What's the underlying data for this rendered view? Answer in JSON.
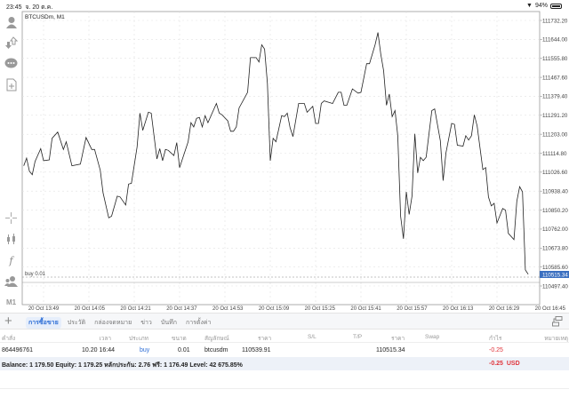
{
  "status_bar": {
    "time": "23:45",
    "date": "จ. 20 ต.ค.",
    "battery": "94%",
    "battery_level": 0.94
  },
  "chart": {
    "symbol_label": "BTCUSDm, M1",
    "order_line_label": "buy 0.01",
    "current_price": "110515.34",
    "current_price_color": "#3a6fc0"
  },
  "toolbar": {
    "timeframe": "M1",
    "icons": [
      "account-icon",
      "trade-arrows-icon",
      "chat-icon",
      "new-document-icon",
      "crosshair-icon",
      "candlestick-icon",
      "function-icon",
      "users-icon",
      "add-icon"
    ]
  },
  "chart_data": {
    "type": "line",
    "title": "BTCUSDm, M1",
    "ylim": [
      110497.4,
      111732.2
    ],
    "yticks": [
      "111732.20",
      "111644.00",
      "111555.80",
      "111467.60",
      "111379.40",
      "111291.20",
      "111203.00",
      "111114.80",
      "111026.60",
      "110938.40",
      "110850.20",
      "110762.00",
      "110673.80",
      "110585.60",
      "110497.40"
    ],
    "xticks": [
      "20 Oct 13:49",
      "20 Oct 14:05",
      "20 Oct 14:21",
      "20 Oct 14:37",
      "20 Oct 14:53",
      "20 Oct 15:09",
      "20 Oct 15:25",
      "20 Oct 15:41",
      "20 Oct 15:57",
      "20 Oct 16:13",
      "20 Oct 16:29",
      "20 Oct 16:45"
    ],
    "grid": true,
    "order_price": 110539.91,
    "points": [
      [
        "13:42",
        111056
      ],
      [
        "13:43",
        111092
      ],
      [
        "13:44",
        111031
      ],
      [
        "13:45",
        111015
      ],
      [
        "13:46",
        111076
      ],
      [
        "13:48",
        111136
      ],
      [
        "13:49",
        111080
      ],
      [
        "13:51",
        111084
      ],
      [
        "13:52",
        111184
      ],
      [
        "13:54",
        111213
      ],
      [
        "13:56",
        111132
      ],
      [
        "13:57",
        111168
      ],
      [
        "13:59",
        111056
      ],
      [
        "14:02",
        111064
      ],
      [
        "14:04",
        111188
      ],
      [
        "14:06",
        111132
      ],
      [
        "14:07",
        111132
      ],
      [
        "14:09",
        111035
      ],
      [
        "14:10",
        110931
      ],
      [
        "14:12",
        110814
      ],
      [
        "14:13",
        110822
      ],
      [
        "14:15",
        110915
      ],
      [
        "14:16",
        110911
      ],
      [
        "14:18",
        110874
      ],
      [
        "14:19",
        110971
      ],
      [
        "14:20",
        110975
      ],
      [
        "14:22",
        111144
      ],
      [
        "14:23",
        111301
      ],
      [
        "14:24",
        111221
      ],
      [
        "14:26",
        111305
      ],
      [
        "14:27",
        111301
      ],
      [
        "14:29",
        111088
      ],
      [
        "14:30",
        111136
      ],
      [
        "14:31",
        111080
      ],
      [
        "14:32",
        111132
      ],
      [
        "14:33",
        111128
      ],
      [
        "14:35",
        111104
      ],
      [
        "14:36",
        111164
      ],
      [
        "14:37",
        111048
      ],
      [
        "14:40",
        111168
      ],
      [
        "14:41",
        111257
      ],
      [
        "14:42",
        111237
      ],
      [
        "14:43",
        111277
      ],
      [
        "14:44",
        111281
      ],
      [
        "14:45",
        111237
      ],
      [
        "14:46",
        111289
      ],
      [
        "14:47",
        111257
      ],
      [
        "14:50",
        111346
      ],
      [
        "14:51",
        111301
      ],
      [
        "14:52",
        111293
      ],
      [
        "14:54",
        111265
      ],
      [
        "14:55",
        111217
      ],
      [
        "14:56",
        111217
      ],
      [
        "14:57",
        111237
      ],
      [
        "14:58",
        111325
      ],
      [
        "15:01",
        111398
      ],
      [
        "15:02",
        111559
      ],
      [
        "15:04",
        111559
      ],
      [
        "15:05",
        111539
      ],
      [
        "15:06",
        111619
      ],
      [
        "15:07",
        111599
      ],
      [
        "15:08",
        111438
      ],
      [
        "15:09",
        111080
      ],
      [
        "15:10",
        111184
      ],
      [
        "15:11",
        111168
      ],
      [
        "15:13",
        111289
      ],
      [
        "15:14",
        111285
      ],
      [
        "15:15",
        111301
      ],
      [
        "15:16",
        111233
      ],
      [
        "15:17",
        111192
      ],
      [
        "15:19",
        111346
      ],
      [
        "15:21",
        111346
      ],
      [
        "15:22",
        111305
      ],
      [
        "15:24",
        111333
      ],
      [
        "15:25",
        111253
      ],
      [
        "15:26",
        111253
      ],
      [
        "15:27",
        111346
      ],
      [
        "15:28",
        111358
      ],
      [
        "15:29",
        111354
      ],
      [
        "15:31",
        111346
      ],
      [
        "15:33",
        111398
      ],
      [
        "15:34",
        111398
      ],
      [
        "15:35",
        111338
      ],
      [
        "15:36",
        111338
      ],
      [
        "15:38",
        111414
      ],
      [
        "15:40",
        111394
      ],
      [
        "15:41",
        111398
      ],
      [
        "15:43",
        111531
      ],
      [
        "15:44",
        111531
      ],
      [
        "15:46",
        111619
      ],
      [
        "15:47",
        111676
      ],
      [
        "15:48",
        111575
      ],
      [
        "15:49",
        111498
      ],
      [
        "15:50",
        111338
      ],
      [
        "15:51",
        111390
      ],
      [
        "15:52",
        111285
      ],
      [
        "15:53",
        111313
      ],
      [
        "15:54",
        111196
      ],
      [
        "15:55",
        110822
      ],
      [
        "15:56",
        110717
      ],
      [
        "15:57",
        110935
      ],
      [
        "15:58",
        110830
      ],
      [
        "15:59",
        110915
      ],
      [
        "16:00",
        111205
      ],
      [
        "16:01",
        111023
      ],
      [
        "16:02",
        111096
      ],
      [
        "16:03",
        111080
      ],
      [
        "16:04",
        111096
      ],
      [
        "16:06",
        111313
      ],
      [
        "16:07",
        111321
      ],
      [
        "16:09",
        111172
      ],
      [
        "16:10",
        110987
      ],
      [
        "16:11",
        111116
      ],
      [
        "16:13",
        111253
      ],
      [
        "16:14",
        111249
      ],
      [
        "16:15",
        111152
      ],
      [
        "16:17",
        111148
      ],
      [
        "16:18",
        111196
      ],
      [
        "16:19",
        111176
      ],
      [
        "16:20",
        111196
      ],
      [
        "16:21",
        111293
      ],
      [
        "16:22",
        111241
      ],
      [
        "16:24",
        111039
      ],
      [
        "16:25",
        111048
      ],
      [
        "16:26",
        110911
      ],
      [
        "16:27",
        110870
      ],
      [
        "16:28",
        110882
      ],
      [
        "16:29",
        110790
      ],
      [
        "16:31",
        110858
      ],
      [
        "16:32",
        110850
      ],
      [
        "16:33",
        110742
      ],
      [
        "16:35",
        110713
      ],
      [
        "16:36",
        110891
      ],
      [
        "16:37",
        110959
      ],
      [
        "16:38",
        110935
      ],
      [
        "16:39",
        110572
      ],
      [
        "16:40",
        110552
      ]
    ]
  },
  "tabs": [
    {
      "label": "การซื้อขาย",
      "active": true
    },
    {
      "label": "ประวัติ"
    },
    {
      "label": "กล่องจดหมาย"
    },
    {
      "label": "ข่าว"
    },
    {
      "label": "บันทึก"
    },
    {
      "label": "การตั้งค่า"
    }
  ],
  "table": {
    "headers": [
      "คำสั่ง",
      "เวลา",
      "ประเภท",
      "ขนาด",
      "สัญลักษณ์",
      "ราคา",
      "S/L",
      "T/P",
      "ราคา",
      "Swap",
      "กำไร",
      "หมายเหตุ"
    ],
    "rows": [
      [
        "864496761",
        "10.20 16:44",
        "buy",
        "0.01",
        "btcusdm",
        "110539.91",
        "",
        "",
        "110515.34",
        "",
        "-0.25",
        ""
      ]
    ],
    "summary": "Balance: 1 179.50 Equity: 1 179.25 หลักประกัน: 2.76 ฟรี: 1 176.49 Level: 42 675.85%",
    "total_profit": "-0.25  USD"
  }
}
